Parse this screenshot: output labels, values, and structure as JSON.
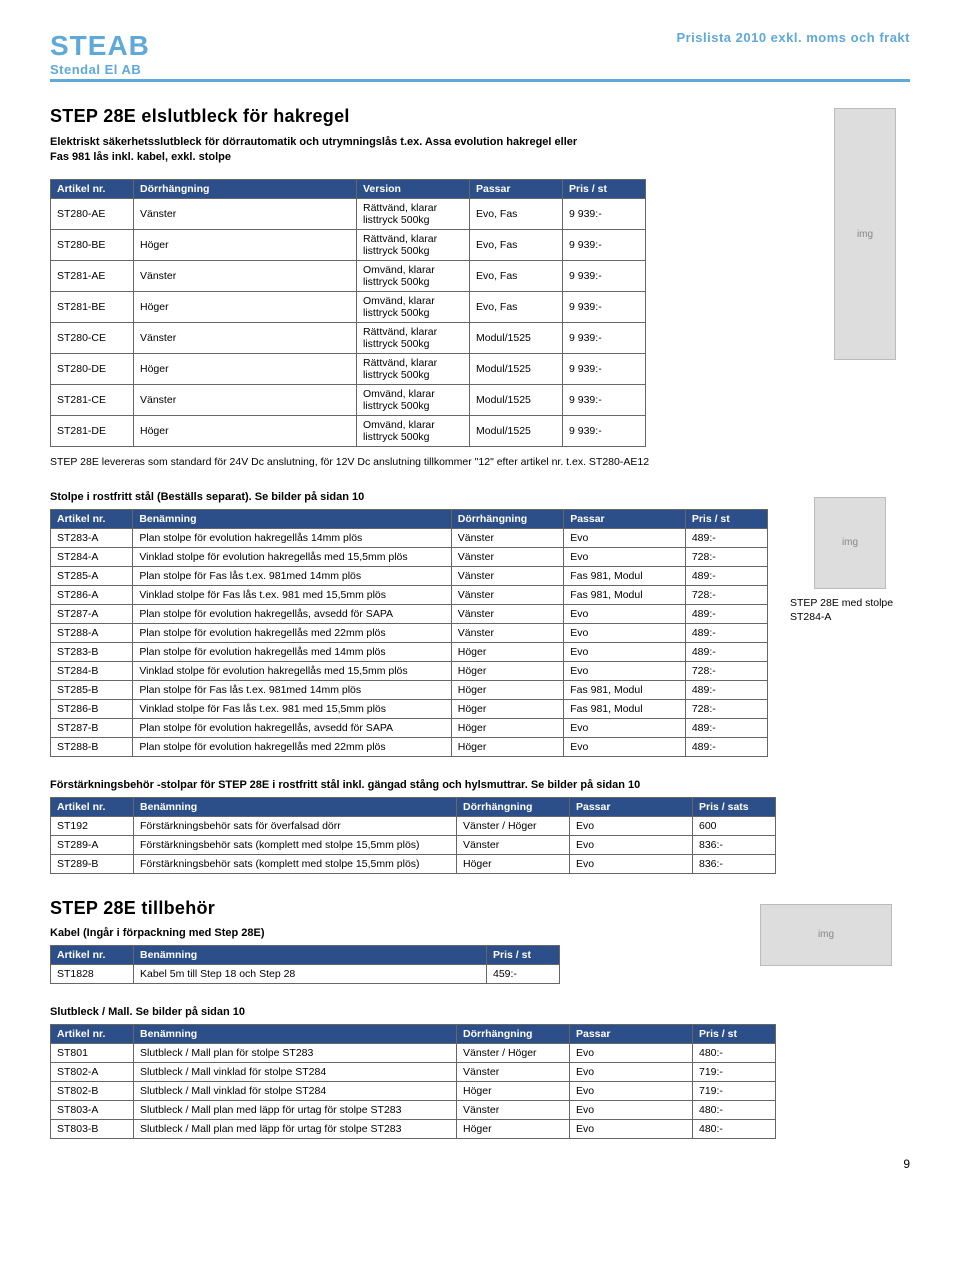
{
  "header": {
    "logo_main": "STEAB",
    "logo_sub": "Stendal El AB",
    "right": "Prislista 2010 exkl. moms och frakt"
  },
  "section1": {
    "title": "STEP 28E elslutbleck för hakregel",
    "desc": "Elektriskt säkerhetsslutbleck för dörrautomatik och utrymningslås t.ex. Assa evolution hakregel eller Fas 981 lås inkl. kabel, exkl. stolpe",
    "columns": [
      "Artikel nr.",
      "Dörrhängning",
      "Version",
      "Passar",
      "Pris / st"
    ],
    "rows": [
      [
        "ST280-AE",
        "Vänster",
        "Rättvänd, klarar listtryck 500kg",
        "Evo, Fas",
        "9 939:-"
      ],
      [
        "ST280-BE",
        "Höger",
        "Rättvänd, klarar listtryck 500kg",
        "Evo, Fas",
        "9 939:-"
      ],
      [
        "ST281-AE",
        "Vänster",
        "Omvänd, klarar listtryck 500kg",
        "Evo, Fas",
        "9 939:-"
      ],
      [
        "ST281-BE",
        "Höger",
        "Omvänd, klarar listtryck 500kg",
        "Evo, Fas",
        "9 939:-"
      ],
      [
        "ST280-CE",
        "Vänster",
        "Rättvänd, klarar listtryck 500kg",
        "Modul/1525",
        "9 939:-"
      ],
      [
        "ST280-DE",
        "Höger",
        "Rättvänd, klarar listtryck 500kg",
        "Modul/1525",
        "9 939:-"
      ],
      [
        "ST281-CE",
        "Vänster",
        "Omvänd, klarar listtryck 500kg",
        "Modul/1525",
        "9 939:-"
      ],
      [
        "ST281-DE",
        "Höger",
        "Omvänd, klarar listtryck 500kg",
        "Modul/1525",
        "9 939:-"
      ]
    ],
    "note": "STEP 28E levereras som standard för 24V Dc anslutning, för 12V Dc anslutning tillkommer \"12\" efter artikel nr. t.ex. ST280-AE12",
    "img_caption": "STEP 28E med stolpe ST284-A"
  },
  "section2": {
    "heading": "Stolpe i rostfritt stål (Beställs separat). Se bilder på sidan 10",
    "columns": [
      "Artikel nr.",
      "Benämning",
      "Dörrhängning",
      "Passar",
      "Pris / st"
    ],
    "rows": [
      [
        "ST283-A",
        "Plan stolpe för evolution hakregellås 14mm plös",
        "Vänster",
        "Evo",
        "489:-"
      ],
      [
        "ST284-A",
        "Vinklad stolpe för evolution hakregellås med 15,5mm plös",
        "Vänster",
        "Evo",
        "728:-"
      ],
      [
        "ST285-A",
        "Plan stolpe för Fas lås t.ex. 981med 14mm plös",
        "Vänster",
        "Fas 981, Modul",
        "489:-"
      ],
      [
        "ST286-A",
        "Vinklad stolpe för Fas lås t.ex. 981 med 15,5mm plös",
        "Vänster",
        "Fas 981, Modul",
        "728:-"
      ],
      [
        "ST287-A",
        "Plan stolpe för evolution hakregellås, avsedd för SAPA",
        "Vänster",
        "Evo",
        "489:-"
      ],
      [
        "ST288-A",
        "Plan stolpe för evolution hakregellås med 22mm plös",
        "Vänster",
        "Evo",
        "489:-"
      ],
      [
        "ST283-B",
        "Plan stolpe för evolution hakregellås med 14mm plös",
        "Höger",
        "Evo",
        "489:-"
      ],
      [
        "ST284-B",
        "Vinklad stolpe för evolution hakregellås med 15,5mm plös",
        "Höger",
        "Evo",
        "728:-"
      ],
      [
        "ST285-B",
        "Plan stolpe för Fas lås t.ex. 981med 14mm plös",
        "Höger",
        "Fas 981, Modul",
        "489:-"
      ],
      [
        "ST286-B",
        "Vinklad stolpe för Fas lås t.ex. 981 med 15,5mm plös",
        "Höger",
        "Fas 981, Modul",
        "728:-"
      ],
      [
        "ST287-B",
        "Plan stolpe för evolution hakregellås, avsedd för SAPA",
        "Höger",
        "Evo",
        "489:-"
      ],
      [
        "ST288-B",
        "Plan stolpe för evolution hakregellås med 22mm plös",
        "Höger",
        "Evo",
        "489:-"
      ]
    ]
  },
  "section3": {
    "heading": "Förstärkningsbehör -stolpar för STEP 28E i rostfritt stål inkl. gängad stång och hylsmuttrar. Se bilder på sidan 10",
    "columns": [
      "Artikel nr.",
      "Benämning",
      "Dörrhängning",
      "Passar",
      "Pris / sats"
    ],
    "rows": [
      [
        "ST192",
        "Förstärkningsbehör sats för överfalsad dörr",
        "Vänster / Höger",
        "Evo",
        "600"
      ],
      [
        "ST289-A",
        "Förstärkningsbehör sats (komplett med stolpe 15,5mm plös)",
        "Vänster",
        "Evo",
        "836:-"
      ],
      [
        "ST289-B",
        "Förstärkningsbehör sats (komplett med stolpe 15,5mm plös)",
        "Höger",
        "Evo",
        "836:-"
      ]
    ]
  },
  "section4": {
    "title": "STEP 28E tillbehör",
    "heading": "Kabel (Ingår i förpackning med Step 28E)",
    "columns": [
      "Artikel nr.",
      "Benämning",
      "Pris / st"
    ],
    "rows": [
      [
        "ST1828",
        "Kabel 5m till Step 18 och Step 28",
        "459:-"
      ]
    ]
  },
  "section5": {
    "heading": "Slutbleck / Mall. Se bilder på sidan 10",
    "columns": [
      "Artikel nr.",
      "Benämning",
      "Dörrhängning",
      "Passar",
      "Pris / st"
    ],
    "rows": [
      [
        "ST801",
        "Slutbleck / Mall plan för stolpe ST283",
        "Vänster / Höger",
        "Evo",
        "480:-"
      ],
      [
        "ST802-A",
        "Slutbleck / Mall vinklad för stolpe ST284",
        "Vänster",
        "Evo",
        "719:-"
      ],
      [
        "ST802-B",
        "Slutbleck / Mall vinklad för stolpe ST284",
        "Höger",
        "Evo",
        "719:-"
      ],
      [
        "ST803-A",
        "Slutbleck / Mall plan med läpp för urtag för stolpe ST283",
        "Vänster",
        "Evo",
        "480:-"
      ],
      [
        "ST803-B",
        "Slutbleck / Mall plan med läpp för urtag för stolpe ST283",
        "Höger",
        "Evo",
        "480:-"
      ]
    ]
  },
  "footer": {
    "page": "9"
  },
  "style": {
    "header_th_bg": "#2c4f8a",
    "header_th_color": "#ffffff",
    "border_color": "#666666",
    "accent": "#5fa9d8",
    "col_widths_5": [
      70,
      310,
      100,
      110,
      70
    ],
    "col_widths_5b": [
      70,
      210,
      100,
      80,
      70
    ],
    "col_widths_3": [
      70,
      340,
      60
    ]
  }
}
